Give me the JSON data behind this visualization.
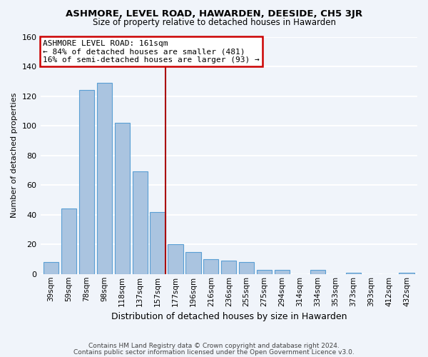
{
  "title": "ASHMORE, LEVEL ROAD, HAWARDEN, DEESIDE, CH5 3JR",
  "subtitle": "Size of property relative to detached houses in Hawarden",
  "xlabel": "Distribution of detached houses by size in Hawarden",
  "ylabel": "Number of detached properties",
  "categories": [
    "39sqm",
    "59sqm",
    "78sqm",
    "98sqm",
    "118sqm",
    "137sqm",
    "157sqm",
    "177sqm",
    "196sqm",
    "216sqm",
    "236sqm",
    "255sqm",
    "275sqm",
    "294sqm",
    "314sqm",
    "334sqm",
    "353sqm",
    "373sqm",
    "393sqm",
    "412sqm",
    "432sqm"
  ],
  "values": [
    8,
    44,
    124,
    129,
    102,
    69,
    42,
    20,
    15,
    10,
    9,
    8,
    3,
    3,
    0,
    3,
    0,
    1,
    0,
    0,
    1
  ],
  "bar_color": "#aac4e0",
  "bar_edge_color": "#5a9fd4",
  "vline_x_index": 6,
  "vline_color": "#aa0000",
  "annotation_title": "ASHMORE LEVEL ROAD: 161sqm",
  "annotation_line1": "← 84% of detached houses are smaller (481)",
  "annotation_line2": "16% of semi-detached houses are larger (93) →",
  "annotation_box_color": "#ffffff",
  "annotation_box_edge": "#cc0000",
  "ylim": [
    0,
    160
  ],
  "yticks": [
    0,
    20,
    40,
    60,
    80,
    100,
    120,
    140,
    160
  ],
  "footer1": "Contains HM Land Registry data © Crown copyright and database right 2024.",
  "footer2": "Contains public sector information licensed under the Open Government Licence v3.0.",
  "bg_color": "#f0f4fa",
  "grid_color": "#ffffff"
}
